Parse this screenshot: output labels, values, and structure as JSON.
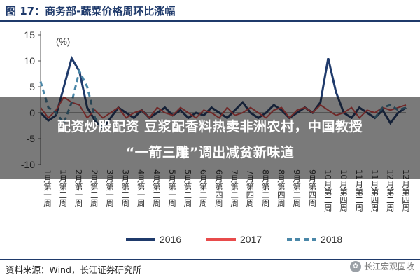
{
  "title": "图 17：商务部-蔬菜价格周环比涨幅",
  "headline_line1": "配资炒股配资 豆浆配香料热卖非洲农村，中国教授",
  "headline_line2": "“一箭三雕”调出减贫新味道",
  "source": "资料来源：Wind，长江证券研究所",
  "watermark": "长江宏观固收",
  "colors": {
    "s2016": "#1f3a6b",
    "s2017": "#e84b4b",
    "s2018": "#4a87a8",
    "title": "#1f3a6b"
  },
  "chart_data": {
    "type": "line",
    "unit_label": "(%)",
    "ylim": [
      -10,
      15
    ],
    "yticks": [
      -10,
      -5,
      0,
      5,
      10,
      15
    ],
    "grid": false,
    "legend_position": "bottom",
    "x_tick_labels": [
      "1月第一周",
      "1月第三周",
      "2月第一周",
      "2月第三周",
      "3月第一周",
      "3月第三周",
      "4月第一周",
      "4月第三周",
      "5月第一周",
      "5月第三周",
      "6月第二周",
      "6月第四周",
      "7月第二周",
      "7月第四周",
      "8月第二周",
      "8月第四周",
      "9月第二周",
      "9月第四周",
      "10月第二周",
      "10月第四周",
      "11月第二周",
      "11月第四周",
      "12月第二周",
      "12月第四周"
    ],
    "series": [
      {
        "name": "2016",
        "style": "solid",
        "x": [
          1,
          2,
          3,
          4,
          5,
          6,
          7,
          8,
          9,
          10,
          11,
          12,
          13,
          14,
          15,
          16,
          17,
          18,
          19,
          20,
          21,
          22,
          23,
          24,
          25,
          26,
          27,
          28,
          29,
          30,
          31,
          32,
          33,
          34,
          35,
          36,
          37,
          38,
          39,
          40,
          41,
          42,
          43,
          44,
          45,
          46,
          47,
          48
        ],
        "values": [
          0,
          -1.5,
          -0.5,
          5,
          10.5,
          8,
          1,
          -1.5,
          -3,
          -1,
          1,
          0,
          -1,
          0.5,
          -1,
          0,
          1,
          -0.5,
          0.5,
          -1,
          0,
          -0.5,
          1,
          0,
          -1,
          0.5,
          2,
          0,
          -1,
          0,
          1.5,
          0.5,
          -1,
          0,
          1,
          0,
          2,
          10.5,
          4,
          0,
          -1,
          1,
          0,
          -1,
          0.5,
          -2,
          0,
          1
        ]
      },
      {
        "name": "2017",
        "style": "solid",
        "x": [
          1,
          2,
          3,
          4,
          5,
          6,
          7,
          8,
          9,
          10,
          11,
          12,
          13,
          14,
          15,
          16,
          17,
          18,
          19,
          20,
          21,
          22,
          23,
          24,
          25,
          26,
          27,
          28,
          29,
          30,
          31,
          32,
          33,
          34,
          35,
          36,
          37,
          38,
          39,
          40,
          41,
          42,
          43,
          44,
          45,
          46,
          47,
          48
        ],
        "values": [
          1,
          -1,
          0.5,
          3,
          2,
          1.5,
          -1,
          0.5,
          -1,
          0,
          1,
          -1,
          0,
          0.5,
          -1,
          1,
          0,
          -0.5,
          1,
          0,
          -1,
          0.5,
          0,
          -1,
          1,
          -0.5,
          0,
          1,
          0,
          -1,
          0.5,
          1,
          -1,
          0.5,
          1,
          0,
          1.5,
          0.5,
          -0.5,
          0,
          1,
          -1,
          0.5,
          0,
          1,
          0.5,
          1,
          1.5
        ]
      },
      {
        "name": "2018",
        "style": "dashed",
        "x": [
          1,
          2,
          3,
          4,
          5,
          6,
          7,
          8,
          9,
          44,
          45,
          46,
          47,
          48
        ],
        "values": [
          6,
          1,
          0,
          -2,
          2,
          8,
          5,
          -1,
          -3,
          -1,
          1,
          1.5,
          0.5,
          1
        ]
      }
    ]
  }
}
